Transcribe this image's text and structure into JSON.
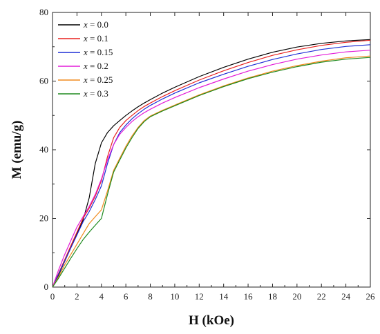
{
  "chart_data": {
    "type": "line",
    "xlabel": "H (kOe)",
    "ylabel": "M (emu/g)",
    "xlim": [
      0,
      26
    ],
    "ylim": [
      0,
      80
    ],
    "x_ticks": [
      0,
      2,
      4,
      6,
      8,
      10,
      12,
      14,
      16,
      18,
      20,
      22,
      24,
      26
    ],
    "y_ticks": [
      0,
      20,
      40,
      60,
      80
    ],
    "grid": false,
    "legend_position": "top-left",
    "legend_var": "x",
    "x": [
      0,
      0.5,
      1,
      1.5,
      2,
      2.5,
      3,
      3.5,
      4,
      4.5,
      5,
      5.5,
      6,
      6.5,
      7,
      7.5,
      8,
      9,
      10,
      12,
      14,
      16,
      18,
      20,
      22,
      24,
      26
    ],
    "series": [
      {
        "name": "0.0",
        "color": "#000000",
        "values": [
          0,
          3.5,
          7.5,
          11.5,
          15.5,
          19.5,
          26,
          36,
          42,
          45,
          47,
          48.5,
          50,
          51.3,
          52.5,
          53.6,
          54.6,
          56.5,
          58.2,
          61.3,
          64,
          66.4,
          68.4,
          69.9,
          71,
          71.7,
          72.1
        ]
      },
      {
        "name": "0.1",
        "color": "#e8201e",
        "values": [
          0,
          4,
          8,
          12,
          16,
          20,
          23,
          26.5,
          31,
          38,
          43.5,
          46.5,
          48.5,
          50,
          51.4,
          52.6,
          53.6,
          55.5,
          57.2,
          60.3,
          63,
          65.4,
          67.5,
          69.1,
          70.4,
          71.3,
          71.9
        ]
      },
      {
        "name": "0.15",
        "color": "#1f2ed6",
        "values": [
          0,
          3.8,
          7.6,
          11.4,
          15.2,
          19,
          22,
          25.5,
          29.5,
          36,
          41.5,
          45,
          47.2,
          49,
          50.5,
          51.8,
          52.9,
          54.8,
          56.5,
          59.5,
          62,
          64.3,
          66.3,
          67.9,
          69.2,
          70.1,
          70.6
        ]
      },
      {
        "name": "0.2",
        "color": "#e41bd8",
        "values": [
          0,
          5,
          9.5,
          13.5,
          17.5,
          20.5,
          23.5,
          27,
          31.5,
          37,
          41.5,
          44.5,
          46.5,
          48.2,
          49.6,
          50.8,
          51.8,
          53.6,
          55.2,
          58.1,
          60.6,
          62.9,
          64.8,
          66.4,
          67.6,
          68.5,
          69
        ]
      },
      {
        "name": "0.25",
        "color": "#f08a1c",
        "values": [
          0,
          3,
          6.5,
          9.5,
          12.5,
          15.5,
          18.5,
          20.5,
          22.5,
          28,
          34,
          37.5,
          41,
          44,
          46.5,
          48.5,
          49.8,
          51.5,
          53,
          56,
          58.6,
          60.9,
          62.9,
          64.5,
          65.8,
          66.8,
          67.3
        ]
      },
      {
        "name": "0.3",
        "color": "#1e8a1e",
        "values": [
          0,
          2.6,
          5.5,
          8.4,
          11.2,
          13.8,
          16,
          18,
          20,
          27,
          33.5,
          37,
          40.5,
          43.5,
          46.2,
          48.2,
          49.6,
          51.3,
          52.8,
          55.8,
          58.4,
          60.7,
          62.6,
          64.2,
          65.5,
          66.4,
          66.9
        ]
      }
    ]
  }
}
